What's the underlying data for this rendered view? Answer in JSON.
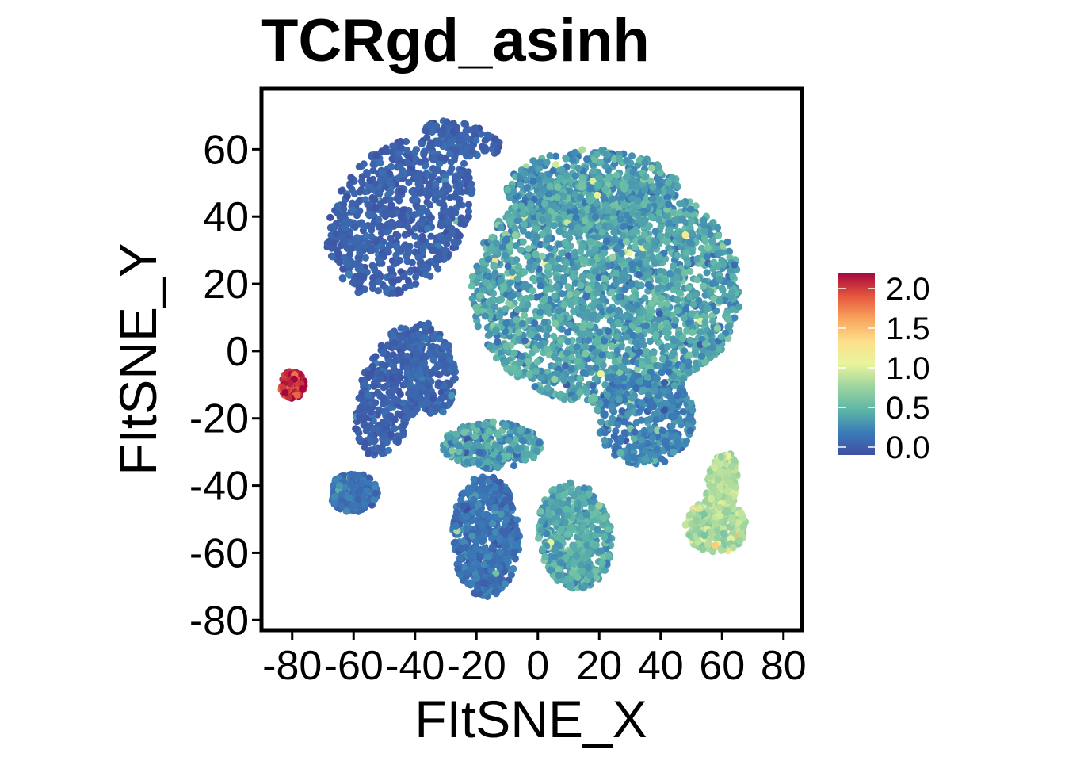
{
  "chart_data": {
    "type": "scatter",
    "title": "TCRgd_asinh",
    "xlabel": "FItSNE_X",
    "ylabel": "FItSNE_Y",
    "xlim": [
      -90,
      86
    ],
    "ylim": [
      -83,
      78
    ],
    "x_ticks": [
      -80,
      -60,
      -40,
      -20,
      0,
      20,
      40,
      60,
      80
    ],
    "y_ticks": [
      -80,
      -60,
      -40,
      -20,
      0,
      20,
      40,
      60
    ],
    "x_tick_labels": [
      "-80",
      "-60",
      "-40",
      "-20",
      "0",
      "20",
      "40",
      "60",
      "80"
    ],
    "y_tick_labels": [
      "-80",
      "-60",
      "-40",
      "-20",
      "0",
      "20",
      "40",
      "60"
    ],
    "grid": false,
    "legend": {
      "position": "right",
      "type": "colorbar",
      "range": [
        -0.1,
        2.2
      ],
      "ticks": [
        0.0,
        0.5,
        1.0,
        1.5,
        2.0
      ],
      "tick_labels": [
        "0.0",
        "0.5",
        "1.0",
        "1.5",
        "2.0"
      ],
      "palette": [
        "#3f4fa2",
        "#3a7cb8",
        "#5eb7a7",
        "#9ed49f",
        "#e8f59c",
        "#fddf8b",
        "#f8a35c",
        "#e5543d",
        "#a3073f"
      ]
    },
    "clusters": [
      {
        "name": "upper-left",
        "cx": -45,
        "cy": 40,
        "rx": 20,
        "ry": 27,
        "angle": -45,
        "n": 750,
        "value_mean": 0.02,
        "value_sd": 0.05
      },
      {
        "name": "upper-left-tip",
        "cx": -25,
        "cy": 63,
        "rx": 13,
        "ry": 5,
        "angle": -10,
        "n": 120,
        "value_mean": 0.03,
        "value_sd": 0.05
      },
      {
        "name": "big-right",
        "cx": 22,
        "cy": 18,
        "rx": 44,
        "ry": 34,
        "angle": 0,
        "n": 2600,
        "value_mean": 0.38,
        "value_sd": 0.12
      },
      {
        "name": "big-right-top",
        "cx": 18,
        "cy": 48,
        "rx": 28,
        "ry": 12,
        "angle": 0,
        "n": 500,
        "value_mean": 0.35,
        "value_sd": 0.12
      },
      {
        "name": "big-right-lower",
        "cx": 35,
        "cy": -20,
        "rx": 16,
        "ry": 14,
        "angle": 0,
        "n": 400,
        "value_mean": 0.22,
        "value_sd": 0.1
      },
      {
        "name": "mid-left",
        "cx": -48,
        "cy": -12,
        "rx": 10,
        "ry": 20,
        "angle": -20,
        "n": 380,
        "value_mean": 0.02,
        "value_sd": 0.05
      },
      {
        "name": "mid-left-arm",
        "cx": -35,
        "cy": -5,
        "rx": 8,
        "ry": 14,
        "angle": 10,
        "n": 220,
        "value_mean": 0.05,
        "value_sd": 0.05
      },
      {
        "name": "lower-left-small",
        "cx": -60,
        "cy": -42,
        "rx": 8,
        "ry": 6,
        "angle": 0,
        "n": 220,
        "value_mean": 0.15,
        "value_sd": 0.08
      },
      {
        "name": "bottom-center",
        "cx": -17,
        "cy": -55,
        "rx": 11,
        "ry": 18,
        "angle": 0,
        "n": 600,
        "value_mean": 0.12,
        "value_sd": 0.08
      },
      {
        "name": "center-lower-band",
        "cx": -15,
        "cy": -28,
        "rx": 16,
        "ry": 7,
        "angle": 0,
        "n": 320,
        "value_mean": 0.35,
        "value_sd": 0.12
      },
      {
        "name": "bottom-right-center",
        "cx": 12,
        "cy": -55,
        "rx": 12,
        "ry": 16,
        "angle": 10,
        "n": 500,
        "value_mean": 0.4,
        "value_sd": 0.1
      },
      {
        "name": "right-crescent",
        "cx": 58,
        "cy": -52,
        "rx": 10,
        "ry": 8,
        "angle": 0,
        "n": 300,
        "value_mean": 0.8,
        "value_sd": 0.1
      },
      {
        "name": "right-crescent-arm",
        "cx": 60,
        "cy": -40,
        "rx": 5,
        "ry": 10,
        "angle": -10,
        "n": 200,
        "value_mean": 0.85,
        "value_sd": 0.1
      },
      {
        "name": "far-left-hot",
        "cx": -80,
        "cy": -10,
        "rx": 4,
        "ry": 4,
        "angle": 0,
        "n": 140,
        "value_mean": 2.05,
        "value_sd": 0.12
      }
    ]
  }
}
